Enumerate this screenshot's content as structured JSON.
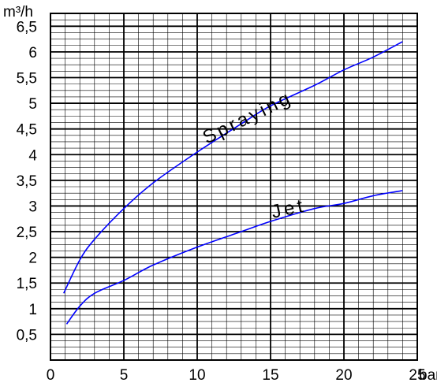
{
  "chart_data": {
    "type": "line",
    "ylabel": "m³/h",
    "xunit": "bar",
    "xlim": [
      0,
      25
    ],
    "ylim": [
      0,
      6.75
    ],
    "grid": true,
    "x_ticks": [
      {
        "value": 0,
        "label": "0"
      },
      {
        "value": 5,
        "label": "5"
      },
      {
        "value": 10,
        "label": "10"
      },
      {
        "value": 15,
        "label": "15"
      },
      {
        "value": 20,
        "label": "20"
      },
      {
        "value": 25,
        "label": "25"
      }
    ],
    "y_ticks": [
      {
        "value": 0.5,
        "label": "0,5"
      },
      {
        "value": 1,
        "label": "1"
      },
      {
        "value": 1.5,
        "label": "1,5"
      },
      {
        "value": 2,
        "label": "2"
      },
      {
        "value": 2.5,
        "label": "2,5"
      },
      {
        "value": 3,
        "label": "3"
      },
      {
        "value": 3.5,
        "label": "3,5"
      },
      {
        "value": 4,
        "label": "4"
      },
      {
        "value": 4.5,
        "label": "4,5"
      },
      {
        "value": 5,
        "label": "5"
      },
      {
        "value": 5.5,
        "label": "5,5"
      },
      {
        "value": 6,
        "label": "6"
      },
      {
        "value": 6.5,
        "label": "6,5"
      }
    ],
    "series": [
      {
        "name": "Spraying",
        "color": "#0000ff",
        "x": [
          0.9,
          2,
          3,
          5,
          7,
          10,
          13,
          15,
          18,
          20,
          22,
          24
        ],
        "y": [
          1.3,
          1.95,
          2.35,
          2.95,
          3.45,
          4.05,
          4.6,
          4.95,
          5.35,
          5.65,
          5.9,
          6.2
        ]
      },
      {
        "name": "Jet",
        "color": "#0000ff",
        "x": [
          1.1,
          2,
          3,
          5,
          7,
          10,
          13,
          15,
          18,
          20,
          22,
          24
        ],
        "y": [
          0.7,
          1.05,
          1.3,
          1.55,
          1.85,
          2.2,
          2.5,
          2.7,
          2.95,
          3.05,
          3.2,
          3.3
        ]
      }
    ]
  }
}
